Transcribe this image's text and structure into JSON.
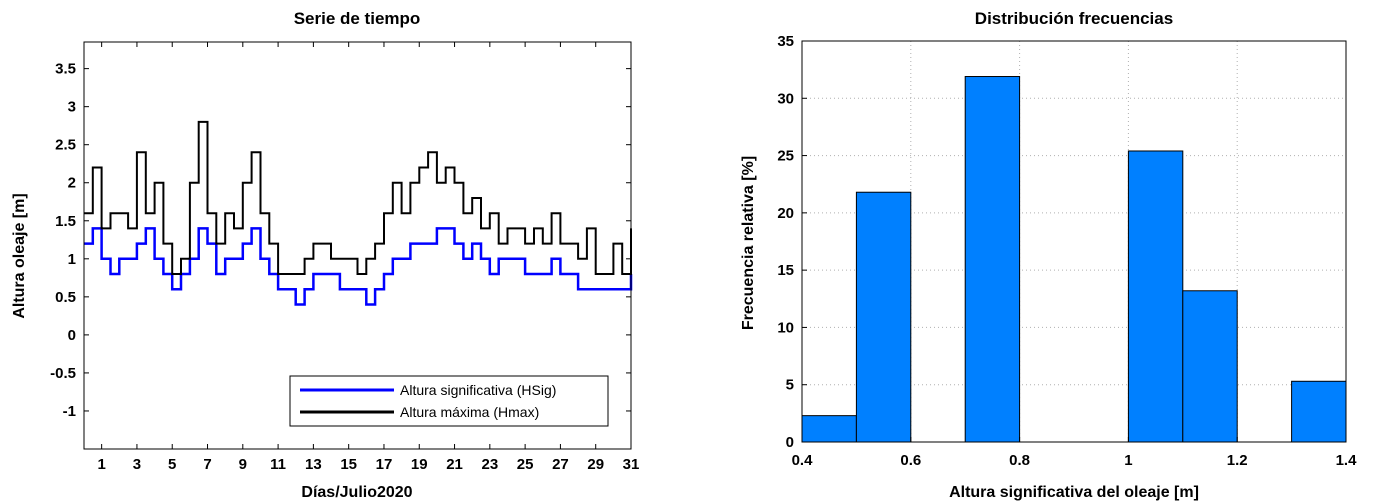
{
  "chart_data": [
    {
      "type": "line",
      "title": "Serie de tiempo",
      "xlabel": "Días/Julio2020",
      "ylabel": "Altura oleaje [m]",
      "xlim": [
        0,
        31
      ],
      "ylim": [
        -1.5,
        3.85
      ],
      "xticks": [
        "1",
        "3",
        "5",
        "7",
        "9",
        "11",
        "13",
        "15",
        "17",
        "19",
        "21",
        "23",
        "25",
        "27",
        "29",
        "31"
      ],
      "yticks": [
        "3.5",
        "3",
        "2.5",
        "2",
        "1.5",
        "1",
        "0.5",
        "0",
        "-0.5",
        "-1"
      ],
      "legend_position": "bottom-right",
      "series": [
        {
          "name": "Altura significativa (HSig)",
          "color": "#0000ff",
          "x": [
            0,
            0.5,
            1,
            1.5,
            2,
            2.5,
            3,
            3.5,
            4,
            4.5,
            5,
            5.5,
            6,
            6.5,
            7,
            7.5,
            8,
            8.5,
            9,
            9.5,
            10,
            10.5,
            11,
            11.5,
            12,
            12.5,
            13,
            13.5,
            14,
            14.5,
            15,
            15.5,
            16,
            16.5,
            17,
            17.5,
            18,
            18.5,
            19,
            19.5,
            20,
            20.5,
            21,
            21.5,
            22,
            22.5,
            23,
            23.5,
            24,
            24.5,
            25,
            25.5,
            26,
            26.5,
            27,
            27.5,
            28,
            28.5,
            29,
            29.5,
            30,
            30.5,
            31
          ],
          "values": [
            1.2,
            1.4,
            1.0,
            0.8,
            1.0,
            1.0,
            1.2,
            1.4,
            1.0,
            0.8,
            0.6,
            0.8,
            1.0,
            1.4,
            1.2,
            0.8,
            1.0,
            1.0,
            1.2,
            1.4,
            1.0,
            0.8,
            0.6,
            0.6,
            0.4,
            0.6,
            0.8,
            0.8,
            0.8,
            0.6,
            0.6,
            0.6,
            0.4,
            0.6,
            0.8,
            1.0,
            1.0,
            1.2,
            1.2,
            1.2,
            1.4,
            1.4,
            1.2,
            1.0,
            1.2,
            1.0,
            0.8,
            1.0,
            1.0,
            1.0,
            0.8,
            0.8,
            0.8,
            1.0,
            0.8,
            0.8,
            0.6,
            0.6,
            0.6,
            0.6,
            0.6,
            0.6,
            0.8
          ]
        },
        {
          "name": "Altura máxima (Hmax)",
          "color": "#000000",
          "x": [
            0,
            0.5,
            1,
            1.5,
            2,
            2.5,
            3,
            3.5,
            4,
            4.5,
            5,
            5.5,
            6,
            6.5,
            7,
            7.5,
            8,
            8.5,
            9,
            9.5,
            10,
            10.5,
            11,
            11.5,
            12,
            12.5,
            13,
            13.5,
            14,
            14.5,
            15,
            15.5,
            16,
            16.5,
            17,
            17.5,
            18,
            18.5,
            19,
            19.5,
            20,
            20.5,
            21,
            21.5,
            22,
            22.5,
            23,
            23.5,
            24,
            24.5,
            25,
            25.5,
            26,
            26.5,
            27,
            27.5,
            28,
            28.5,
            29,
            29.5,
            30,
            30.5,
            31
          ],
          "values": [
            1.6,
            2.2,
            1.4,
            1.6,
            1.6,
            1.4,
            2.4,
            1.6,
            2.0,
            1.2,
            0.8,
            1.0,
            2.0,
            2.8,
            1.6,
            1.2,
            1.6,
            1.4,
            2.0,
            2.4,
            1.6,
            1.2,
            0.8,
            0.8,
            0.8,
            1.0,
            1.2,
            1.2,
            1.0,
            1.0,
            1.0,
            0.8,
            1.0,
            1.2,
            1.6,
            2.0,
            1.6,
            2.0,
            2.2,
            2.4,
            2.0,
            2.2,
            2.0,
            1.6,
            1.8,
            1.4,
            1.6,
            1.2,
            1.4,
            1.4,
            1.2,
            1.4,
            1.2,
            1.6,
            1.2,
            1.2,
            1.0,
            1.4,
            0.8,
            0.8,
            1.2,
            0.8,
            1.4
          ]
        }
      ]
    },
    {
      "type": "bar",
      "title": "Distribución frecuencias",
      "xlabel": "Altura significativa del oleaje [m]",
      "ylabel": "Frecuencia relativa [%]",
      "xlim": [
        0.4,
        1.4
      ],
      "ylim": [
        0,
        35
      ],
      "xticks": [
        "0.4",
        "0.6",
        "0.8",
        "1",
        "1.2",
        "1.4"
      ],
      "yticks": [
        "0",
        "5",
        "10",
        "15",
        "20",
        "25",
        "30",
        "35"
      ],
      "bar_color": "#0080ff",
      "bars": [
        {
          "x0": 0.4,
          "x1": 0.5,
          "value": 2.3
        },
        {
          "x0": 0.5,
          "x1": 0.6,
          "value": 21.8
        },
        {
          "x0": 0.7,
          "x1": 0.8,
          "value": 31.9
        },
        {
          "x0": 1.0,
          "x1": 1.1,
          "value": 25.4
        },
        {
          "x0": 1.1,
          "x1": 1.2,
          "value": 13.2
        },
        {
          "x0": 1.3,
          "x1": 1.4,
          "value": 5.3
        }
      ]
    }
  ]
}
